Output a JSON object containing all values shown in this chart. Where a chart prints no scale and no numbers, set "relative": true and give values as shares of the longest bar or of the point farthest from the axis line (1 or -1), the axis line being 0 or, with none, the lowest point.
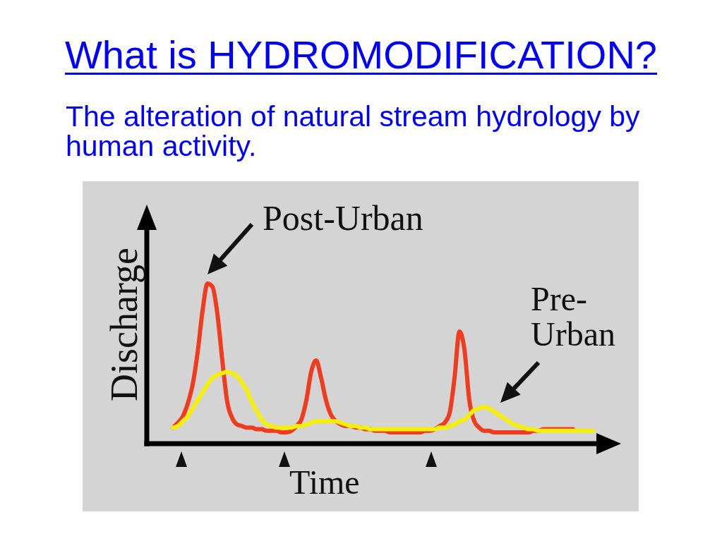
{
  "chart_data": {
    "type": "line",
    "title": "What is HYDROMODIFICATION?",
    "subtitle": "The alteration of natural stream hydrology by human activity.",
    "xlabel": "Time",
    "ylabel": "Discharge",
    "relative": true,
    "categories": [
      null,
      null,
      null,
      null,
      null,
      null,
      null,
      null,
      null,
      null,
      null,
      null,
      null,
      null,
      null,
      null,
      null,
      null,
      null,
      null,
      null,
      null,
      null,
      null,
      null,
      null,
      null,
      null,
      null,
      null,
      null,
      null,
      null,
      null,
      null,
      null,
      null,
      null,
      null,
      null,
      null,
      null,
      null,
      null,
      null,
      null,
      null,
      null,
      null,
      null,
      null,
      null,
      null,
      null,
      null,
      null,
      null,
      null,
      null,
      null,
      null,
      null,
      null,
      null,
      null,
      null,
      null,
      null,
      null,
      null,
      null,
      null,
      null,
      null,
      null,
      null,
      null,
      null,
      null,
      null,
      null,
      null,
      null,
      null,
      null,
      null
    ],
    "series": [
      {
        "name": "Post-Urban",
        "color": "#f03c1e",
        "values": [
          0.1,
          0.13,
          0.17,
          0.25,
          0.37,
          0.57,
          0.83,
          1,
          0.98,
          0.81,
          0.52,
          0.26,
          0.16,
          0.12,
          0.11,
          0.1,
          0.1,
          0.09,
          0.09,
          0.08,
          0.08,
          0.08,
          0.07,
          0.07,
          0.08,
          0.11,
          0.15,
          0.27,
          0.45,
          0.52,
          0.41,
          0.27,
          0.18,
          0.14,
          0.12,
          0.11,
          0.11,
          0.1,
          0.1,
          0.09,
          0.09,
          0.08,
          0.08,
          0.08,
          0.07,
          0.07,
          0.07,
          0.07,
          0.07,
          0.07,
          0.07,
          0.08,
          0.08,
          0.09,
          0.11,
          0.13,
          0.19,
          0.41,
          0.7,
          0.59,
          0.27,
          0.14,
          0.1,
          0.08,
          0.08,
          0.07,
          0.07,
          0.07,
          0.07,
          0.07,
          0.07,
          0.07,
          0.07,
          0.08,
          0.08,
          0.09,
          0.09,
          0.09,
          0.09,
          0.09,
          0.09,
          0.09,
          null,
          null,
          null,
          null
        ]
      },
      {
        "name": "Pre-Urban",
        "color": "#f5ee0a",
        "values": [
          0.1,
          0.11,
          0.14,
          0.17,
          0.22,
          0.27,
          0.32,
          0.37,
          0.41,
          0.43,
          0.44,
          0.45,
          0.44,
          0.42,
          0.38,
          0.33,
          0.26,
          0.2,
          0.15,
          0.12,
          0.11,
          0.1,
          0.1,
          0.1,
          0.1,
          0.11,
          0.11,
          0.12,
          0.13,
          0.14,
          0.14,
          0.14,
          0.14,
          0.14,
          0.13,
          0.12,
          0.11,
          0.11,
          0.1,
          0.1,
          0.09,
          0.09,
          0.09,
          0.09,
          0.09,
          0.09,
          0.09,
          0.09,
          0.09,
          0.09,
          0.09,
          0.09,
          0.09,
          0.09,
          0.1,
          0.1,
          0.11,
          0.12,
          0.14,
          0.15,
          0.18,
          0.21,
          0.22,
          0.23,
          0.22,
          0.2,
          0.18,
          0.16,
          0.14,
          0.12,
          0.11,
          0.1,
          0.09,
          0.09,
          0.08,
          0.08,
          0.08,
          0.08,
          0.08,
          0.08,
          0.08,
          0.08,
          0.08,
          0.08,
          0.08,
          0.08
        ]
      }
    ],
    "line_style": "solid"
  }
}
